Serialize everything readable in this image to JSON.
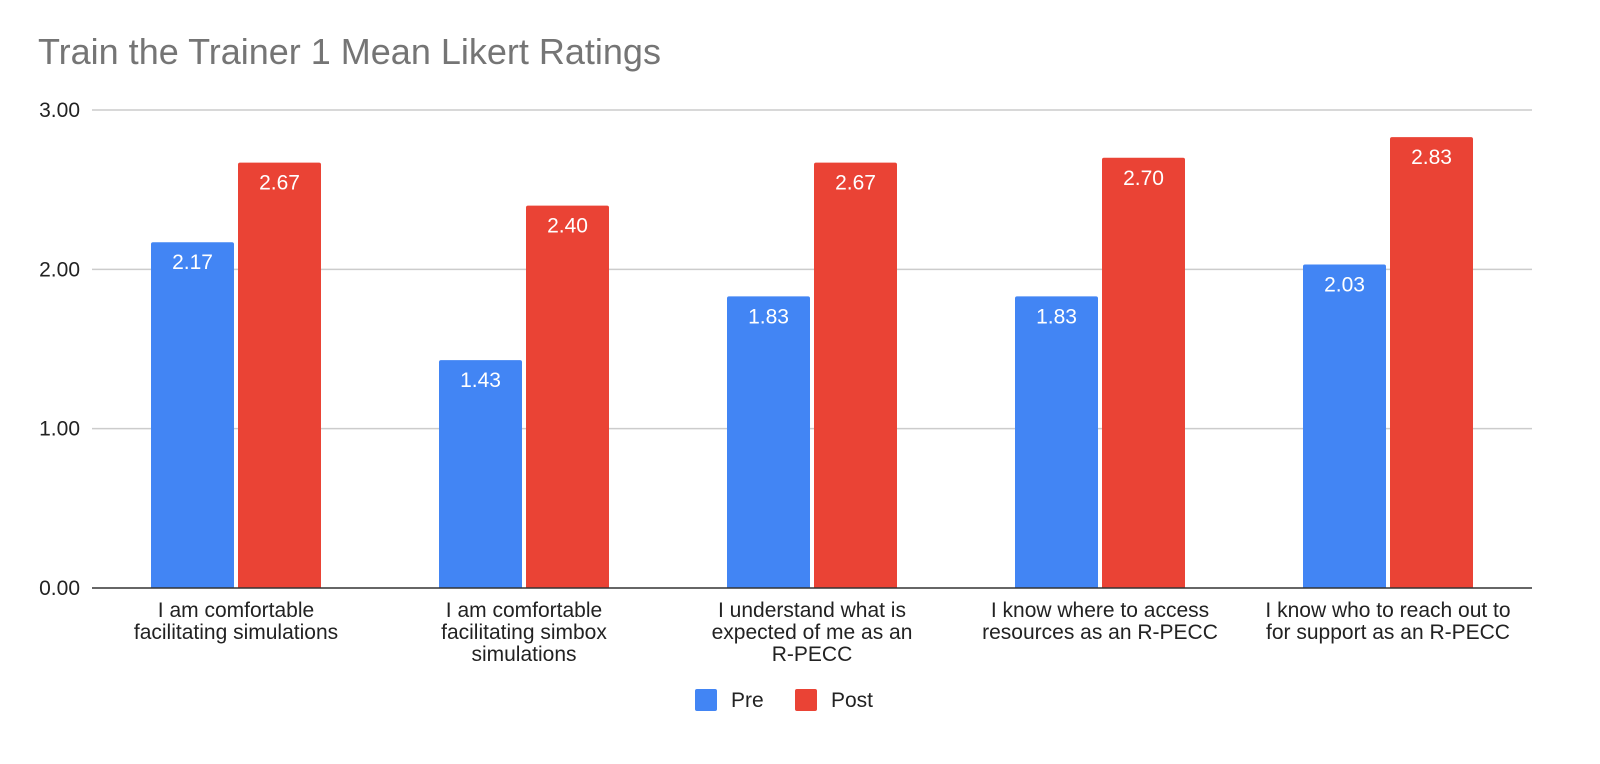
{
  "chart_data": {
    "type": "bar",
    "title": "Train the Trainer 1 Mean Likert Ratings",
    "categories": [
      [
        "I am comfortable",
        "facilitating simulations"
      ],
      [
        "I am comfortable",
        "facilitating simbox",
        "simulations"
      ],
      [
        "I understand what is",
        "expected of me as an",
        "R-PECC"
      ],
      [
        "I know where to access",
        "resources as an R-PECC"
      ],
      [
        "I know who to reach out to",
        "for support as an R-PECC"
      ]
    ],
    "series": [
      {
        "name": "Pre",
        "color": "#4285f4",
        "values": [
          2.17,
          1.43,
          1.83,
          1.83,
          2.03
        ],
        "labels": [
          "2.17",
          "1.43",
          "1.83",
          "1.83",
          "2.03"
        ]
      },
      {
        "name": "Post",
        "color": "#ea4335",
        "values": [
          2.67,
          2.4,
          2.67,
          2.7,
          2.83
        ],
        "labels": [
          "2.67",
          "2.40",
          "2.67",
          "2.70",
          "2.83"
        ]
      }
    ],
    "ylim": [
      0,
      3
    ],
    "yticks": [
      "0.00",
      "1.00",
      "2.00",
      "3.00"
    ],
    "xlabel": "",
    "ylabel": "",
    "grid": true,
    "legend": "bottom"
  }
}
